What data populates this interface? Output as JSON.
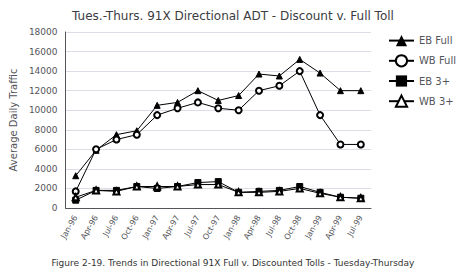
{
  "chart_data": {
    "type": "line",
    "title": "Tues.-Thurs. 91X Directional ADT - Discount v. Full Toll",
    "ylabel": "Average Daily Traffic",
    "caption": "Figure 2-19. Trends in Directional 91X Full v. Discounted Tolls - Tuesday-Thursday",
    "categories": [
      "Jan-96",
      "Apr-96",
      "Jul-96",
      "Oct-96",
      "Jan-97",
      "Apr-97",
      "Jul-97",
      "Oct-97",
      "Jan-98",
      "Apr-98",
      "Jul-98",
      "Oct-98",
      "Jan-99",
      "Apr-99",
      "Jul-99"
    ],
    "series": [
      {
        "name": "EB Full",
        "color": "#000000",
        "marker": "triangle",
        "values": [
          3300,
          5900,
          7500,
          7900,
          10500,
          10800,
          12000,
          11000,
          11500,
          13700,
          13500,
          15200,
          13800,
          12000,
          12000
        ]
      },
      {
        "name": "WB Full",
        "color": "#000000",
        "marker": "open-circle",
        "values": [
          1700,
          6000,
          7000,
          7500,
          9500,
          10200,
          10800,
          10200,
          10000,
          12000,
          12500,
          14000,
          9500,
          6500,
          6500
        ]
      },
      {
        "name": "EB 3+",
        "color": "#000000",
        "marker": "square",
        "values": [
          800,
          1800,
          1800,
          2200,
          2000,
          2200,
          2600,
          2700,
          1600,
          1700,
          1800,
          2200,
          1600,
          1100,
          1000
        ]
      },
      {
        "name": "WB 3+",
        "color": "#000000",
        "marker": "open-triangle",
        "values": [
          1100,
          1800,
          1700,
          2200,
          2200,
          2200,
          2400,
          2400,
          1600,
          1600,
          1700,
          2000,
          1500,
          1100,
          1000
        ]
      }
    ],
    "ylim": [
      0,
      18000
    ],
    "yticks": [
      0,
      2000,
      4000,
      6000,
      8000,
      10000,
      12000,
      14000,
      16000,
      18000
    ],
    "grid": true,
    "legend": "right"
  }
}
